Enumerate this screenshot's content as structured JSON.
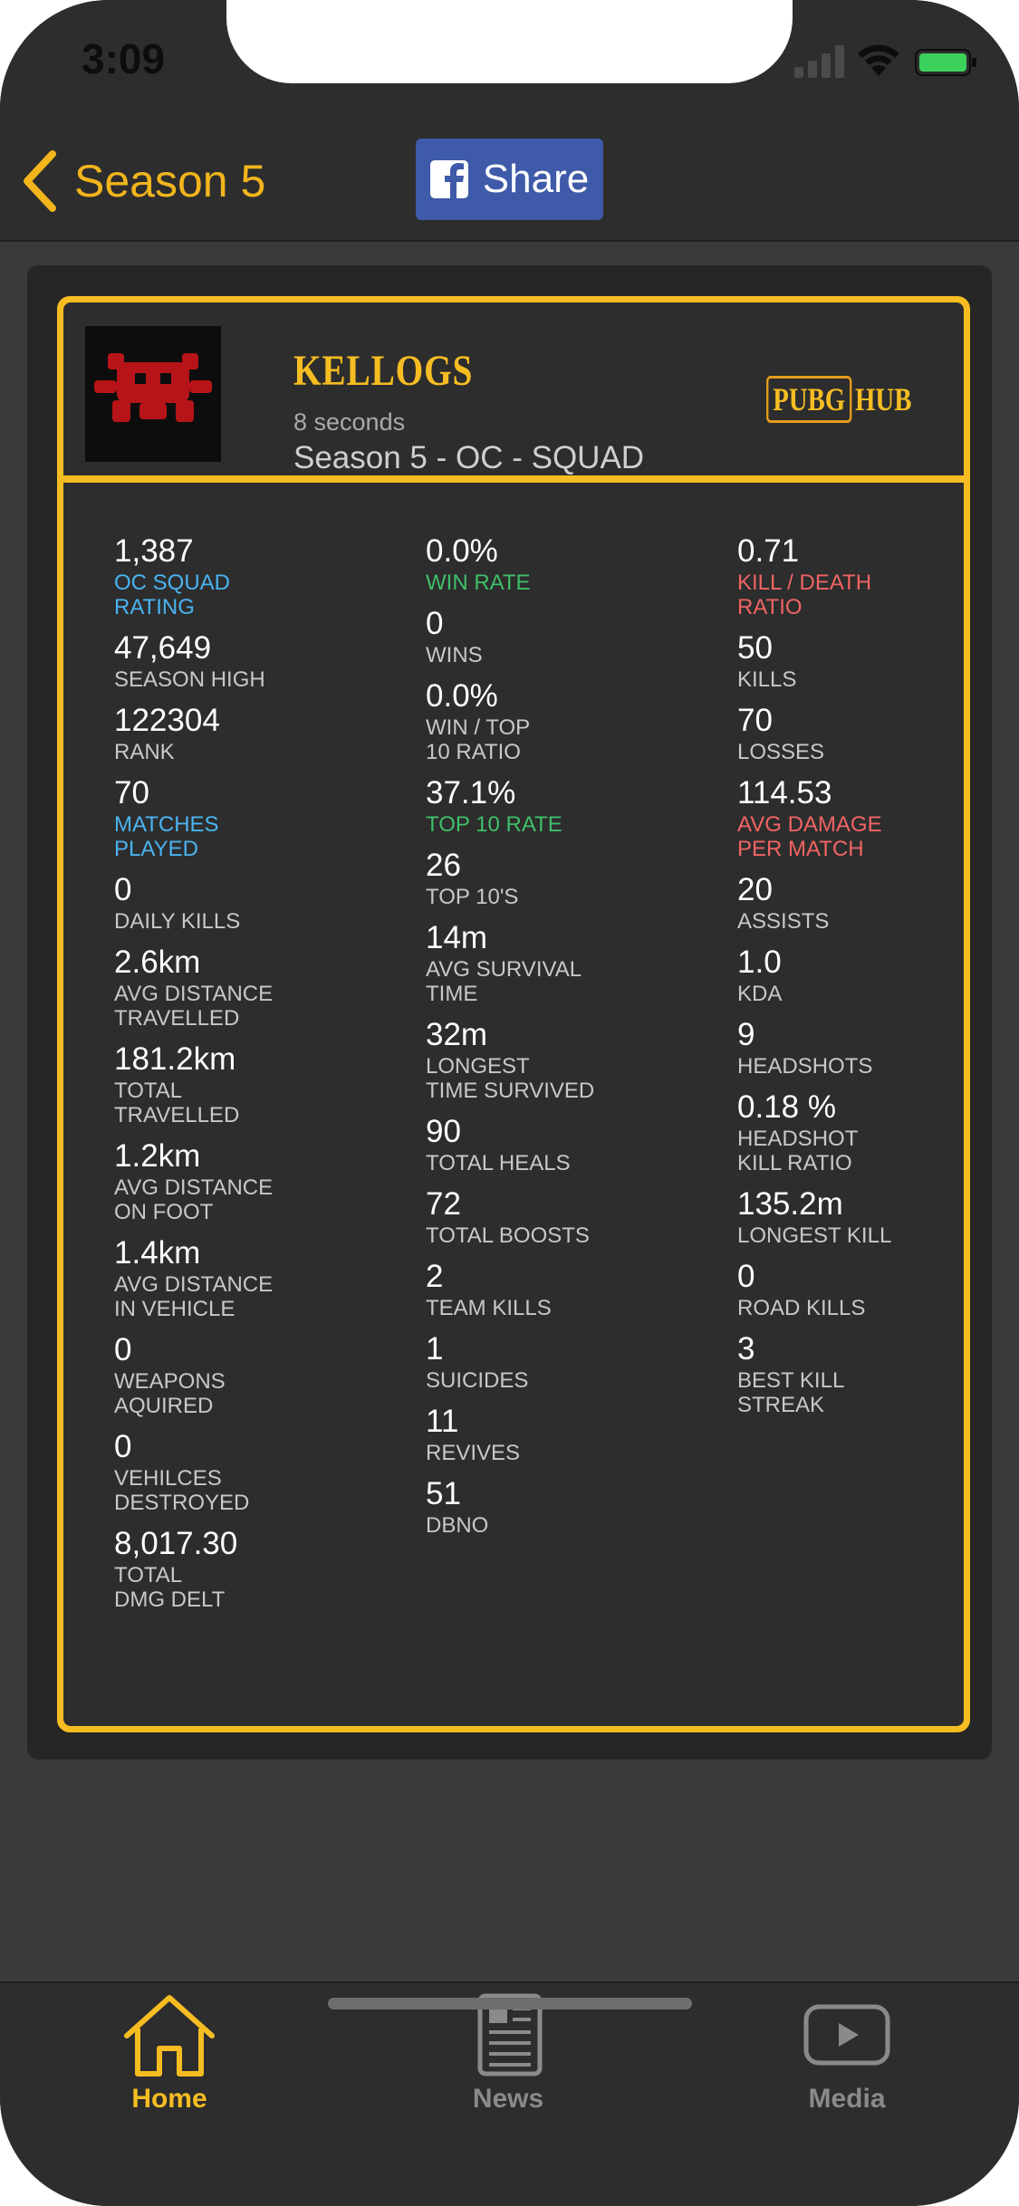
{
  "status_bar": {
    "time": "3:09"
  },
  "nav": {
    "back_label": "Season 5",
    "share_label": "Share"
  },
  "player": {
    "name": "KELLOGS",
    "updated": "8 seconds",
    "mode": "Season 5 - OC - SQUAD",
    "logo_text_1": "PUBG",
    "logo_text_2": "HUB"
  },
  "columns": [
    [
      {
        "value": "1,387",
        "label": "OC SQUAD\nRATING",
        "color": "#4ab3f0"
      },
      {
        "value": "47,649",
        "label": "SEASON HIGH"
      },
      {
        "value": "122304",
        "label": "RANK"
      },
      {
        "value": "70",
        "label": "MATCHES\nPLAYED",
        "color": "#4ab3f0"
      },
      {
        "value": "0",
        "label": "DAILY KILLS"
      },
      {
        "value": "2.6km",
        "label": "AVG DISTANCE\nTRAVELLED"
      },
      {
        "value": "181.2km",
        "label": "TOTAL\nTRAVELLED"
      },
      {
        "value": "1.2km",
        "label": "AVG DISTANCE\nON FOOT"
      },
      {
        "value": "1.4km",
        "label": "AVG DISTANCE\nIN VEHICLE"
      },
      {
        "value": "0",
        "label": "WEAPONS\nAQUIRED"
      },
      {
        "value": "0",
        "label": "VEHILCES\nDESTROYED"
      },
      {
        "value": "8,017.30",
        "label": "TOTAL\nDMG DELT"
      }
    ],
    [
      {
        "value": "0.0%",
        "label": "WIN RATE",
        "color": "#3fbf6a"
      },
      {
        "value": "0",
        "label": "WINS"
      },
      {
        "value": "0.0%",
        "label": "WIN / TOP\n10 RATIO"
      },
      {
        "value": "37.1%",
        "label": "TOP 10 RATE",
        "color": "#3fbf6a"
      },
      {
        "value": "26",
        "label": "TOP 10's"
      },
      {
        "value": "14m",
        "label": "AVG SURVIVAL\nTIME"
      },
      {
        "value": "32m",
        "label": "LONGEST\nTIME SURVIVED"
      },
      {
        "value": "90",
        "label": "TOTAL HEALS"
      },
      {
        "value": "72",
        "label": "TOTAL BOOSTS"
      },
      {
        "value": "2",
        "label": "TEAM KILLS"
      },
      {
        "value": "1",
        "label": "SUICIDES"
      },
      {
        "value": "11",
        "label": "REVIVES"
      },
      {
        "value": "51",
        "label": "DBNO"
      }
    ],
    [
      {
        "value": "0.71",
        "label": "KILL / DEATH\nRATIO",
        "color": "#f06464"
      },
      {
        "value": "50",
        "label": "KILLS"
      },
      {
        "value": "70",
        "label": "LOSSES"
      },
      {
        "value": "114.53",
        "label": "AVG DAMAGE\nPER MATCH",
        "color": "#f06464"
      },
      {
        "value": "20",
        "label": "ASSISTS"
      },
      {
        "value": "1.0",
        "label": "KDA"
      },
      {
        "value": "9",
        "label": "HEADSHOTS"
      },
      {
        "value": "0.18 %",
        "label": "HEADSHOT\nKILL RATIO"
      },
      {
        "value": "135.2m",
        "label": "LONGEST KILL"
      },
      {
        "value": "0",
        "label": "ROAD KILLS"
      },
      {
        "value": "3",
        "label": "BEST KILL\nSTREAK"
      }
    ]
  ],
  "tabs": [
    {
      "label": "Home",
      "icon": "home-icon",
      "active": true
    },
    {
      "label": "News",
      "icon": "newspaper-icon",
      "active": false
    },
    {
      "label": "Media",
      "icon": "play-icon",
      "active": false
    }
  ],
  "colors": {
    "accent": "#f6bd22",
    "facebook": "#3e5aa8"
  }
}
